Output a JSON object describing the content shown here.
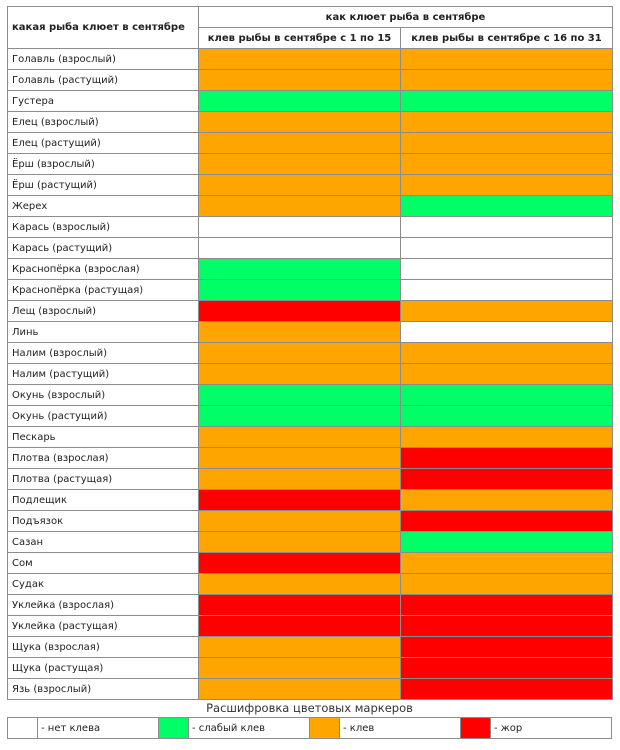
{
  "colors": {
    "none": "#ffffff",
    "weak": "#00ff66",
    "bite": "#ffa500",
    "feed": "#ff0000"
  },
  "header": {
    "fish_column": "какая рыба клюет в сентябре",
    "group_title": "как клюет рыба в сентябре",
    "period1": "клев рыбы в сентябре с 1 по 15",
    "period2": "клев рыбы в сентябре с 16 по 31"
  },
  "rows": [
    {
      "fish": "Голавль (взрослый)",
      "p1": "bite",
      "p2": "bite"
    },
    {
      "fish": "Голавль (растущий)",
      "p1": "bite",
      "p2": "bite"
    },
    {
      "fish": "Густера",
      "p1": "weak",
      "p2": "weak"
    },
    {
      "fish": "Елец (взрослый)",
      "p1": "bite",
      "p2": "bite"
    },
    {
      "fish": "Елец (растущий)",
      "p1": "bite",
      "p2": "bite"
    },
    {
      "fish": "Ёрш (взрослый)",
      "p1": "bite",
      "p2": "bite"
    },
    {
      "fish": "Ёрш (растущий)",
      "p1": "bite",
      "p2": "bite"
    },
    {
      "fish": "Жерех",
      "p1": "bite",
      "p2": "weak"
    },
    {
      "fish": "Карась (взрослый)",
      "p1": "none",
      "p2": "none"
    },
    {
      "fish": "Карась (растущий)",
      "p1": "none",
      "p2": "none"
    },
    {
      "fish": "Краснопёрка (взрослая)",
      "p1": "weak",
      "p2": "none"
    },
    {
      "fish": "Краснопёрка (растущая)",
      "p1": "weak",
      "p2": "none"
    },
    {
      "fish": "Лещ (взрослый)",
      "p1": "feed",
      "p2": "bite"
    },
    {
      "fish": "Линь",
      "p1": "bite",
      "p2": "none"
    },
    {
      "fish": "Налим (взрослый)",
      "p1": "bite",
      "p2": "bite"
    },
    {
      "fish": "Налим (растущий)",
      "p1": "bite",
      "p2": "bite"
    },
    {
      "fish": "Окунь (взрослый)",
      "p1": "weak",
      "p2": "weak"
    },
    {
      "fish": "Окунь (растущий)",
      "p1": "weak",
      "p2": "weak"
    },
    {
      "fish": "Пескарь",
      "p1": "bite",
      "p2": "bite"
    },
    {
      "fish": "Плотва (взрослая)",
      "p1": "bite",
      "p2": "feed"
    },
    {
      "fish": "Плотва (растущая)",
      "p1": "bite",
      "p2": "feed"
    },
    {
      "fish": "Подлещик",
      "p1": "feed",
      "p2": "bite"
    },
    {
      "fish": "Подъязок",
      "p1": "bite",
      "p2": "feed"
    },
    {
      "fish": "Сазан",
      "p1": "bite",
      "p2": "weak"
    },
    {
      "fish": "Сом",
      "p1": "feed",
      "p2": "bite"
    },
    {
      "fish": "Судак",
      "p1": "bite",
      "p2": "bite"
    },
    {
      "fish": "Уклейка (взрослая)",
      "p1": "feed",
      "p2": "feed"
    },
    {
      "fish": "Уклейка (растущая)",
      "p1": "feed",
      "p2": "feed"
    },
    {
      "fish": "Щука (взрослая)",
      "p1": "bite",
      "p2": "feed"
    },
    {
      "fish": "Щука (растущая)",
      "p1": "bite",
      "p2": "feed"
    },
    {
      "fish": "Язь (взрослый)",
      "p1": "bite",
      "p2": "feed"
    }
  ],
  "legend": {
    "caption": "Расшифровка цветовых маркеров",
    "items": [
      {
        "level": "none",
        "label": "- нет клева"
      },
      {
        "level": "weak",
        "label": "- слабый клев"
      },
      {
        "level": "bite",
        "label": "- клев"
      },
      {
        "level": "feed",
        "label": "- жор"
      }
    ]
  }
}
